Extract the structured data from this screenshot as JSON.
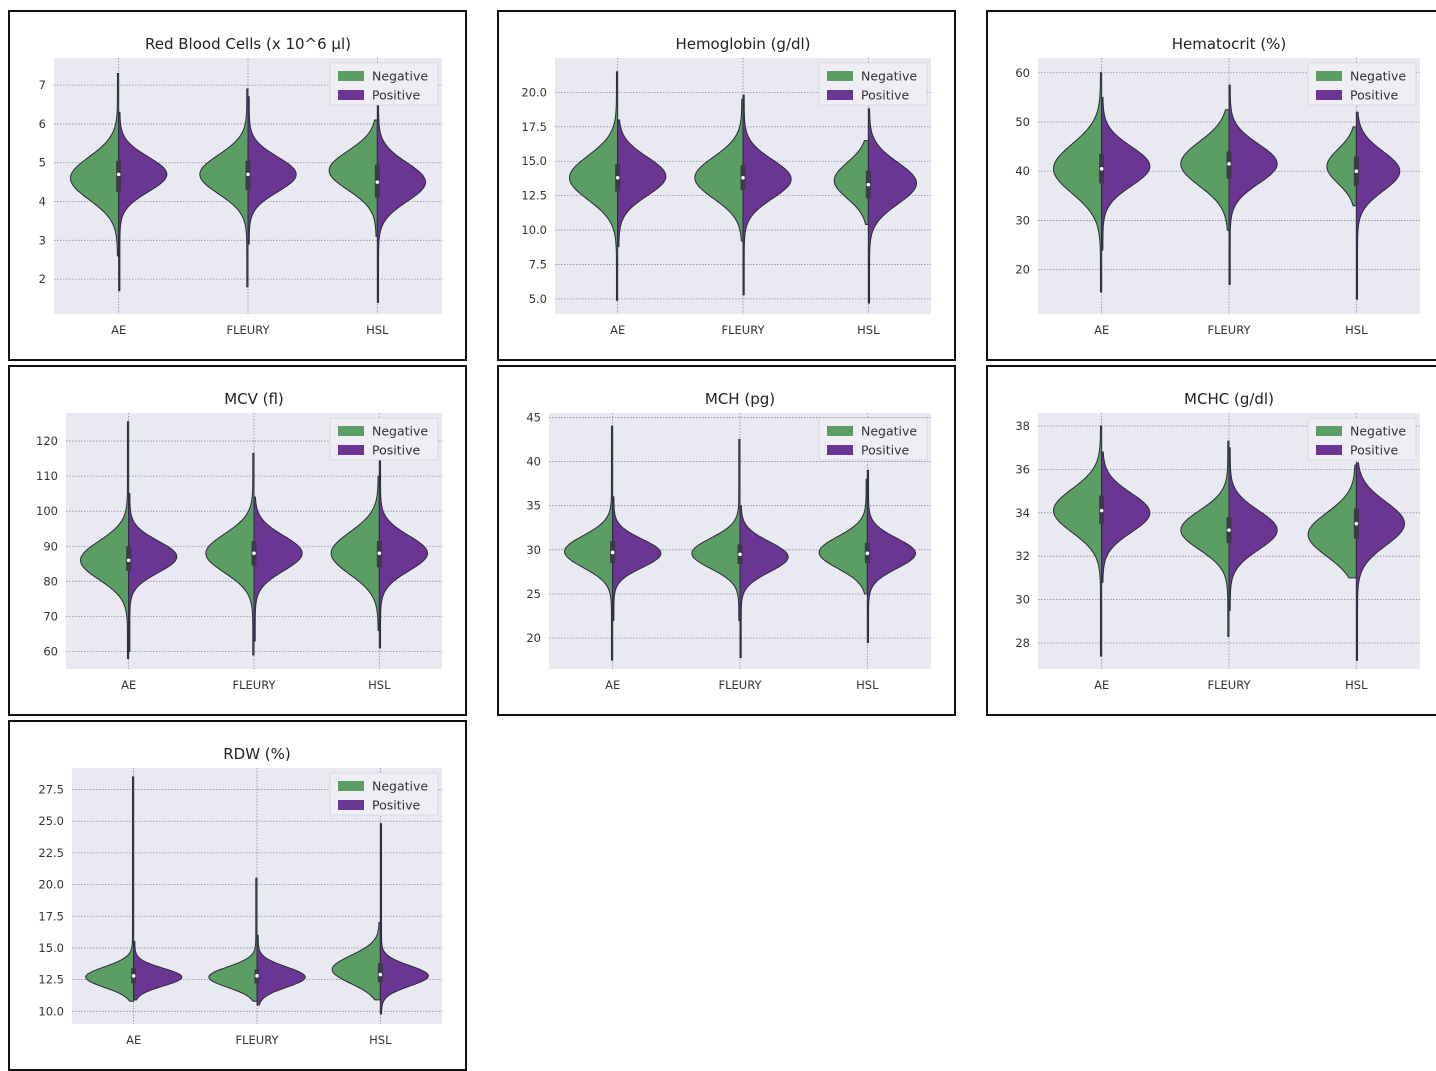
{
  "colors": {
    "negative": "#5a9e63",
    "positive": "#6b3594",
    "plot_bg": "#e9e9f2",
    "grid": "#8a8aa0",
    "outline": "#2a2a3a"
  },
  "legend": {
    "placement": "upper-right",
    "negative": "Negative",
    "positive": "Positive"
  },
  "chart_data": [
    {
      "type": "violin",
      "title": "Red Blood Cells (x 10^6 µl)",
      "categories": [
        "AE",
        "FLEURY",
        "HSL"
      ],
      "ylim": [
        1.1,
        7.7
      ],
      "yticks": [
        2,
        3,
        4,
        5,
        6,
        7
      ],
      "ytick_labels": [
        "2",
        "3",
        "4",
        "5",
        "6",
        "7"
      ],
      "grid": true,
      "legend": "upper-right",
      "series": [
        {
          "name": "Negative",
          "distributions": [
            {
              "center": 4.6,
              "spread": 0.55,
              "min": 2.6,
              "max": 7.3,
              "max_width": 1.0
            },
            {
              "center": 4.7,
              "spread": 0.5,
              "min": 1.8,
              "max": 6.9,
              "max_width": 1.0
            },
            {
              "center": 4.8,
              "spread": 0.5,
              "min": 3.1,
              "max": 6.1,
              "max_width": 1.0
            }
          ]
        },
        {
          "name": "Positive",
          "distributions": [
            {
              "center": 4.7,
              "spread": 0.45,
              "min": 1.7,
              "max": 6.3,
              "max_width": 1.0
            },
            {
              "center": 4.7,
              "spread": 0.45,
              "min": 2.9,
              "max": 6.7,
              "max_width": 1.0
            },
            {
              "center": 4.5,
              "spread": 0.5,
              "min": 1.4,
              "max": 6.5,
              "max_width": 1.0
            }
          ]
        }
      ],
      "medians": [
        4.7,
        4.7,
        4.5
      ],
      "quartiles": [
        [
          4.25,
          5.05
        ],
        [
          4.3,
          5.05
        ],
        [
          4.1,
          4.95
        ]
      ]
    },
    {
      "type": "violin",
      "title": "Hemoglobin (g/dl)",
      "categories": [
        "AE",
        "FLEURY",
        "HSL"
      ],
      "ylim": [
        3.9,
        22.5
      ],
      "yticks": [
        5,
        7.5,
        10,
        12.5,
        15,
        17.5,
        20
      ],
      "ytick_labels": [
        "5.0",
        "7.5",
        "10.0",
        "12.5",
        "15.0",
        "17.5",
        "20.0"
      ],
      "grid": true,
      "legend": "upper-right",
      "series": [
        {
          "name": "Negative",
          "distributions": [
            {
              "center": 13.8,
              "spread": 1.6,
              "min": 4.9,
              "max": 21.5,
              "max_width": 1.0
            },
            {
              "center": 13.8,
              "spread": 1.5,
              "min": 9.2,
              "max": 19.5,
              "max_width": 1.0
            },
            {
              "center": 13.6,
              "spread": 1.3,
              "min": 10.4,
              "max": 16.5,
              "max_width": 0.7
            }
          ]
        },
        {
          "name": "Positive",
          "distributions": [
            {
              "center": 13.9,
              "spread": 1.4,
              "min": 8.8,
              "max": 18.0,
              "max_width": 1.0
            },
            {
              "center": 13.7,
              "spread": 1.4,
              "min": 5.3,
              "max": 19.8,
              "max_width": 1.0
            },
            {
              "center": 13.4,
              "spread": 1.5,
              "min": 4.7,
              "max": 18.8,
              "max_width": 1.0
            }
          ]
        }
      ],
      "medians": [
        13.8,
        13.8,
        13.3
      ],
      "quartiles": [
        [
          12.8,
          14.8
        ],
        [
          12.9,
          14.7
        ],
        [
          12.3,
          14.3
        ]
      ]
    },
    {
      "type": "violin",
      "title": "Hematocrit (%)",
      "categories": [
        "AE",
        "FLEURY",
        "HSL"
      ],
      "ylim": [
        11,
        63
      ],
      "yticks": [
        20,
        30,
        40,
        50,
        60
      ],
      "ytick_labels": [
        "20",
        "30",
        "40",
        "50",
        "60"
      ],
      "grid": true,
      "legend": "upper-right",
      "series": [
        {
          "name": "Negative",
          "distributions": [
            {
              "center": 40.5,
              "spread": 5.0,
              "min": 15.5,
              "max": 60.0,
              "max_width": 1.0
            },
            {
              "center": 41.5,
              "spread": 4.5,
              "min": 28.0,
              "max": 52.5,
              "max_width": 1.0
            },
            {
              "center": 41.0,
              "spread": 3.5,
              "min": 33.0,
              "max": 49.0,
              "max_width": 0.6
            }
          ]
        },
        {
          "name": "Positive",
          "distributions": [
            {
              "center": 41.0,
              "spread": 4.0,
              "min": 24.0,
              "max": 55.0,
              "max_width": 1.0
            },
            {
              "center": 41.5,
              "spread": 4.0,
              "min": 17.0,
              "max": 57.5,
              "max_width": 1.0
            },
            {
              "center": 40.0,
              "spread": 4.0,
              "min": 14.0,
              "max": 52.0,
              "max_width": 0.9
            }
          ]
        }
      ],
      "medians": [
        40.5,
        41.5,
        40.0
      ],
      "quartiles": [
        [
          37.5,
          43.5
        ],
        [
          38.5,
          44.0
        ],
        [
          37.0,
          43.0
        ]
      ]
    },
    {
      "type": "violin",
      "title": "MCV (fl)",
      "categories": [
        "AE",
        "FLEURY",
        "HSL"
      ],
      "ylim": [
        55,
        128
      ],
      "yticks": [
        60,
        70,
        80,
        90,
        100,
        110,
        120
      ],
      "ytick_labels": [
        "60",
        "70",
        "80",
        "90",
        "100",
        "110",
        "120"
      ],
      "grid": true,
      "legend": "upper-right",
      "series": [
        {
          "name": "Negative",
          "distributions": [
            {
              "center": 86.0,
              "spread": 5.5,
              "min": 58.0,
              "max": 125.5,
              "max_width": 1.0
            },
            {
              "center": 88.0,
              "spread": 5.5,
              "min": 59.0,
              "max": 116.5,
              "max_width": 1.0
            },
            {
              "center": 88.0,
              "spread": 6.0,
              "min": 66.0,
              "max": 110.0,
              "max_width": 1.0
            }
          ]
        },
        {
          "name": "Positive",
          "distributions": [
            {
              "center": 87.0,
              "spread": 4.5,
              "min": 60.0,
              "max": 105.0,
              "max_width": 1.0
            },
            {
              "center": 88.0,
              "spread": 5.0,
              "min": 63.0,
              "max": 104.0,
              "max_width": 1.0
            },
            {
              "center": 88.0,
              "spread": 5.0,
              "min": 61.0,
              "max": 114.5,
              "max_width": 1.0
            }
          ]
        }
      ],
      "medians": [
        86.0,
        88.0,
        88.0
      ],
      "quartiles": [
        [
          83.0,
          90.0
        ],
        [
          84.5,
          91.5
        ],
        [
          84.0,
          91.5
        ]
      ]
    },
    {
      "type": "violin",
      "title": "MCH (pg)",
      "categories": [
        "AE",
        "FLEURY",
        "HSL"
      ],
      "ylim": [
        16.5,
        45.5
      ],
      "yticks": [
        20,
        25,
        30,
        35,
        40,
        45
      ],
      "ytick_labels": [
        "20",
        "25",
        "30",
        "35",
        "40",
        "45"
      ],
      "grid": true,
      "legend": "upper-right",
      "series": [
        {
          "name": "Negative",
          "distributions": [
            {
              "center": 29.8,
              "spread": 1.8,
              "min": 17.5,
              "max": 44.0,
              "max_width": 1.0
            },
            {
              "center": 29.6,
              "spread": 1.7,
              "min": 22.0,
              "max": 42.5,
              "max_width": 1.0
            },
            {
              "center": 29.7,
              "spread": 1.8,
              "min": 25.0,
              "max": 38.0,
              "max_width": 1.0
            }
          ]
        },
        {
          "name": "Positive",
          "distributions": [
            {
              "center": 29.6,
              "spread": 1.6,
              "min": 22.0,
              "max": 36.0,
              "max_width": 1.0
            },
            {
              "center": 29.2,
              "spread": 1.7,
              "min": 17.8,
              "max": 35.0,
              "max_width": 1.0
            },
            {
              "center": 29.6,
              "spread": 1.7,
              "min": 19.5,
              "max": 39.0,
              "max_width": 1.0
            }
          ]
        }
      ],
      "medians": [
        29.7,
        29.5,
        29.6
      ],
      "quartiles": [
        [
          28.5,
          31.0
        ],
        [
          28.4,
          30.6
        ],
        [
          28.5,
          30.8
        ]
      ]
    },
    {
      "type": "violin",
      "title": "MCHC (g/dl)",
      "categories": [
        "AE",
        "FLEURY",
        "HSL"
      ],
      "ylim": [
        26.8,
        38.6
      ],
      "yticks": [
        28,
        30,
        32,
        34,
        36,
        38
      ],
      "ytick_labels": [
        "28",
        "30",
        "32",
        "34",
        "36",
        "38"
      ],
      "grid": true,
      "legend": "upper-right",
      "series": [
        {
          "name": "Negative",
          "distributions": [
            {
              "center": 34.1,
              "spread": 1.0,
              "min": 27.4,
              "max": 38.0,
              "max_width": 1.0
            },
            {
              "center": 33.2,
              "spread": 0.9,
              "min": 28.3,
              "max": 37.3,
              "max_width": 1.0
            },
            {
              "center": 33.0,
              "spread": 1.0,
              "min": 31.0,
              "max": 36.2,
              "max_width": 1.0
            }
          ]
        },
        {
          "name": "Positive",
          "distributions": [
            {
              "center": 34.0,
              "spread": 0.9,
              "min": 30.8,
              "max": 36.8,
              "max_width": 1.0
            },
            {
              "center": 33.2,
              "spread": 0.9,
              "min": 29.5,
              "max": 37.0,
              "max_width": 1.0
            },
            {
              "center": 33.5,
              "spread": 1.0,
              "min": 27.2,
              "max": 36.3,
              "max_width": 1.0
            }
          ]
        }
      ],
      "medians": [
        34.1,
        33.2,
        33.5
      ],
      "quartiles": [
        [
          33.5,
          34.8
        ],
        [
          32.6,
          33.8
        ],
        [
          32.8,
          34.2
        ]
      ]
    },
    {
      "type": "violin",
      "title": "RDW (%)",
      "categories": [
        "AE",
        "FLEURY",
        "HSL"
      ],
      "ylim": [
        9.0,
        29.2
      ],
      "yticks": [
        10,
        12.5,
        15,
        17.5,
        20,
        22.5,
        25,
        27.5
      ],
      "ytick_labels": [
        "10.0",
        "12.5",
        "15.0",
        "17.5",
        "20.0",
        "22.5",
        "25.0",
        "27.5"
      ],
      "grid": true,
      "legend": "upper-right",
      "series": [
        {
          "name": "Negative",
          "distributions": [
            {
              "center": 12.7,
              "spread": 0.8,
              "min": 10.8,
              "max": 28.5,
              "max_width": 1.0
            },
            {
              "center": 12.7,
              "spread": 0.8,
              "min": 10.8,
              "max": 20.5,
              "max_width": 1.0
            },
            {
              "center": 13.3,
              "spread": 1.1,
              "min": 10.9,
              "max": 17.0,
              "max_width": 1.0
            }
          ]
        },
        {
          "name": "Positive",
          "distributions": [
            {
              "center": 12.7,
              "spread": 0.7,
              "min": 10.9,
              "max": 15.5,
              "max_width": 1.0
            },
            {
              "center": 12.7,
              "spread": 0.8,
              "min": 10.5,
              "max": 16.0,
              "max_width": 1.0
            },
            {
              "center": 12.8,
              "spread": 0.8,
              "min": 9.8,
              "max": 24.8,
              "max_width": 1.0
            }
          ]
        }
      ],
      "medians": [
        12.8,
        12.8,
        12.9
      ],
      "quartiles": [
        [
          12.2,
          13.4
        ],
        [
          12.2,
          13.3
        ],
        [
          12.3,
          13.8
        ]
      ]
    }
  ]
}
